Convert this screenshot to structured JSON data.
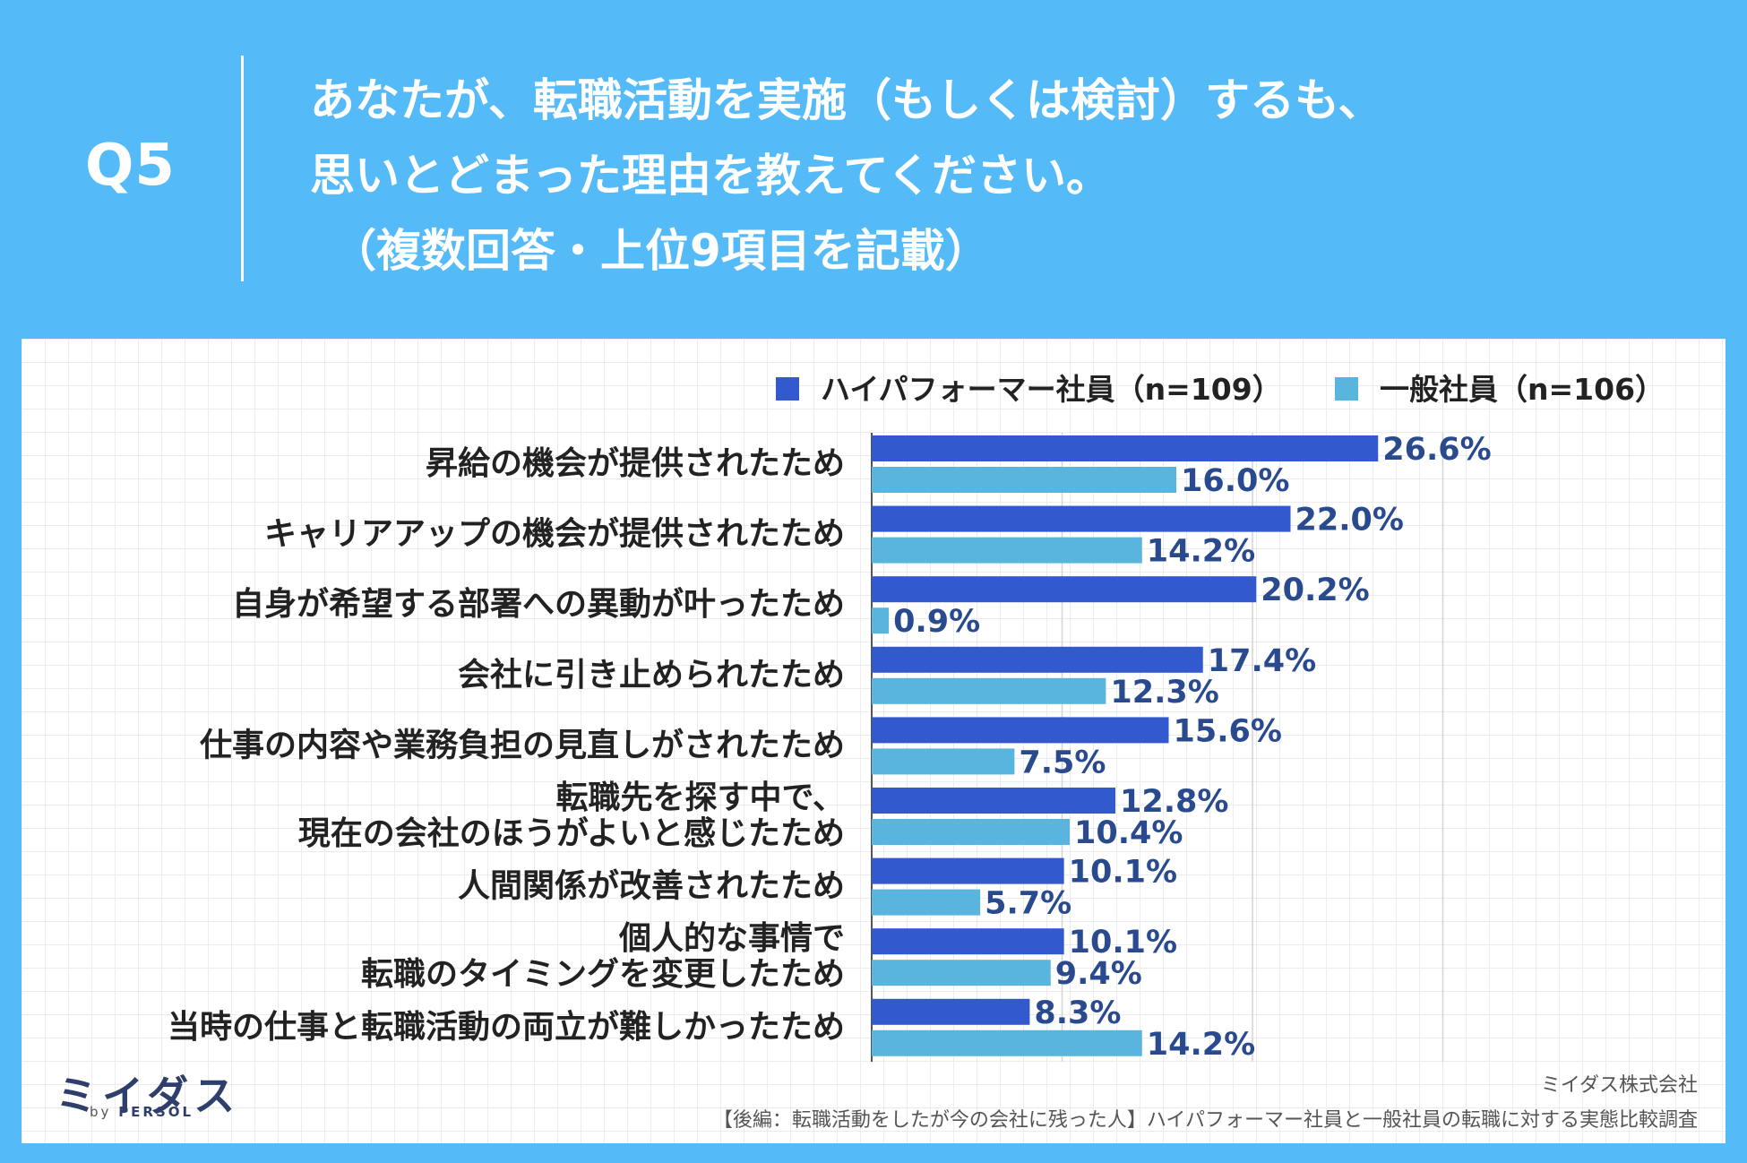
{
  "header": {
    "question_label": "Q5",
    "question_lines": [
      "あなたが、転職活動を実施（もしくは検討）するも、",
      "思いとどまった理由を教えてください。",
      "（複数回答・上位9項目を記載）"
    ]
  },
  "colors": {
    "background": "#55bbf8",
    "high_performer": "#3359cf",
    "general": "#5ab5de",
    "value_text": "#2a4a8f"
  },
  "chart_data": {
    "type": "bar",
    "orientation": "horizontal",
    "categories": [
      [
        "昇給の機会が提供されたため"
      ],
      [
        "キャリアアップの機会が提供されたため"
      ],
      [
        "自身が希望する部署への異動が叶ったため"
      ],
      [
        "会社に引き止められたため"
      ],
      [
        "仕事の内容や業務負担の見直しがされたため"
      ],
      [
        "転職先を探す中で、",
        "現在の会社のほうがよいと感じたため"
      ],
      [
        "人間関係が改善されたため"
      ],
      [
        "個人的な事情で",
        "転職のタイミングを変更したため"
      ],
      [
        "当時の仕事と転職活動の両立が難しかったため"
      ]
    ],
    "series": [
      {
        "name": "ハイパフォーマー社員（n=109）",
        "values": [
          26.6,
          22.0,
          20.2,
          17.4,
          15.6,
          12.8,
          10.1,
          10.1,
          8.3
        ],
        "labels": [
          "26.6%",
          "22.0%",
          "20.2%",
          "17.4%",
          "15.6%",
          "12.8%",
          "10.1%",
          "10.1%",
          "8.3%"
        ]
      },
      {
        "name": "一般社員（n=106）",
        "values": [
          16.0,
          14.2,
          0.9,
          12.3,
          7.5,
          10.4,
          5.7,
          9.4,
          14.2
        ],
        "labels": [
          "16.0%",
          "14.2%",
          "0.9%",
          "12.3%",
          "7.5%",
          "10.4%",
          "5.7%",
          "9.4%",
          "14.2%"
        ]
      }
    ],
    "xlim": [
      0,
      30
    ],
    "grid": true,
    "legend": "top-right"
  },
  "footer": {
    "logo": "ミイダス",
    "logo_by": "by",
    "logo_brand": "PERSOL",
    "company": "ミイダス株式会社",
    "source": "【後編：転職活動をしたが今の会社に残った人】ハイパフォーマー社員と一般社員の転職に対する実態比較調査"
  }
}
